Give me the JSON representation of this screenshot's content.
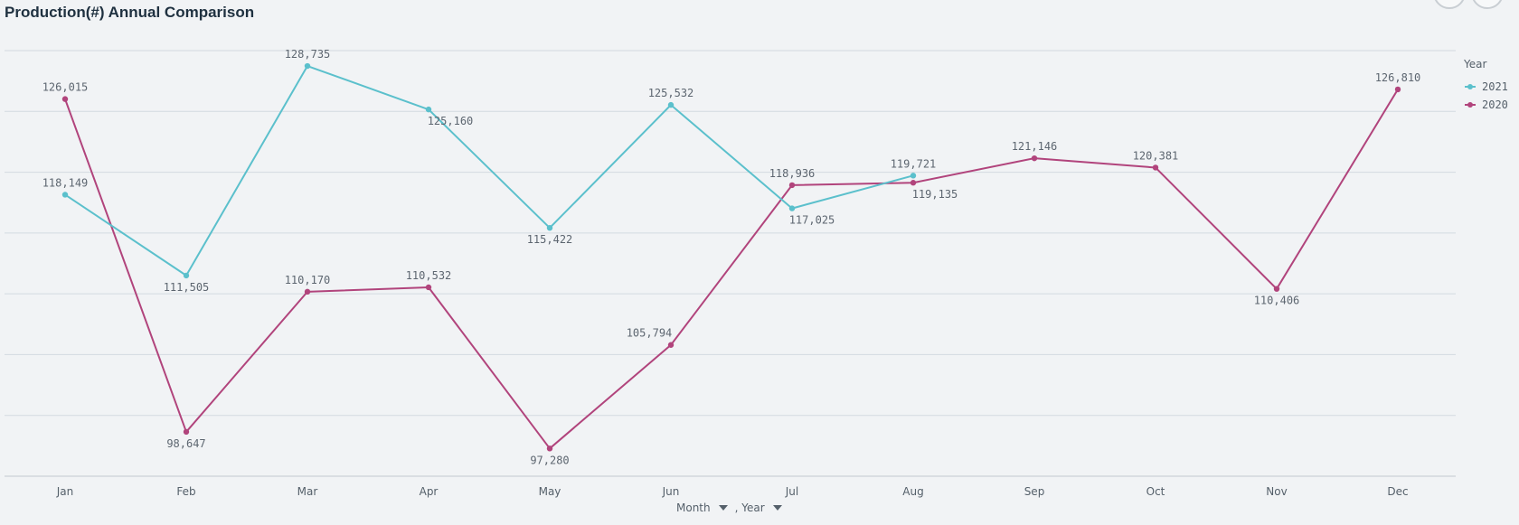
{
  "title": "Production(#) Annual Comparison",
  "dimensions": {
    "month_label": "Month",
    "year_label": ", Year"
  },
  "chart_data": {
    "type": "line",
    "categories": [
      "Jan",
      "Feb",
      "Mar",
      "Apr",
      "May",
      "Jun",
      "Jul",
      "Aug",
      "Sep",
      "Oct",
      "Nov",
      "Dec"
    ],
    "series": [
      {
        "name": "2021",
        "color": "#5bc0cc",
        "values": [
          118149,
          111505,
          128735,
          125160,
          115422,
          125532,
          117025,
          119721,
          null,
          null,
          null,
          null
        ],
        "labels": [
          "118,149",
          "111,505",
          "128,735",
          "125,160",
          "115,422",
          "125,532",
          "117,025",
          "119,721",
          null,
          null,
          null,
          null
        ]
      },
      {
        "name": "2020",
        "color": "#b1447c",
        "values": [
          126015,
          98647,
          110170,
          110532,
          97280,
          105794,
          118936,
          119135,
          121146,
          120381,
          110406,
          126810
        ],
        "labels": [
          "126,015",
          "98,647",
          "110,170",
          "110,532",
          "97,280",
          "105,794",
          "118,936",
          "119,135",
          "121,146",
          "120,381",
          "110,406",
          "126,810"
        ]
      }
    ],
    "legend_title": "Year",
    "legend_position": "right",
    "ylim": [
      95000,
      130000
    ],
    "grid": true,
    "y_axis_labels_shown": false,
    "xlabel": "Month",
    "ylabel": ""
  }
}
